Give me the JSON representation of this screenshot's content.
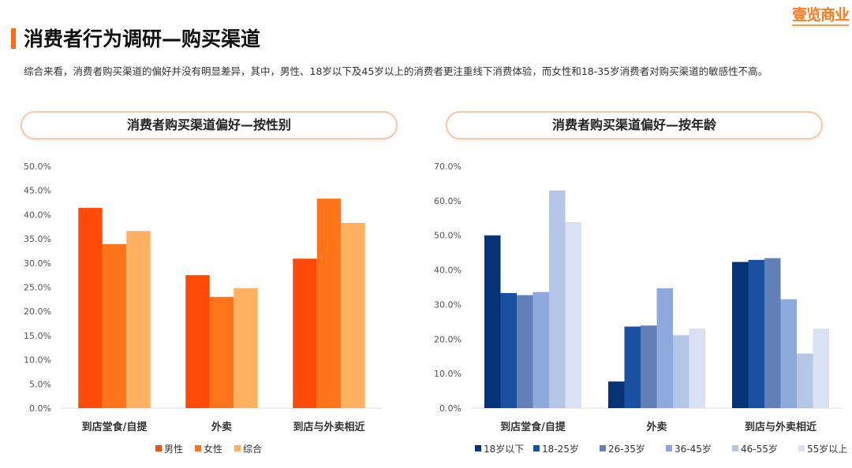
{
  "header": {
    "title": "消费者行为调研—购买渠道",
    "logo": "壹览商业",
    "summary": "综合来看，消费者购买渠道的偏好并没有明显差异，其中，男性、18岁以下及45岁以上的消费者更注重线下消费体验，而女性和18-35岁消费者对购买渠道的敏感性不高。"
  },
  "chart_data": [
    {
      "type": "bar",
      "title": "消费者购买渠道偏好—按性别",
      "categories": [
        "到店堂食/自提",
        "外卖",
        "到店与外卖相近"
      ],
      "yticks": [
        "0.0%",
        "5.0%",
        "10.0%",
        "15.0%",
        "20.0%",
        "25.0%",
        "30.0%",
        "35.0%",
        "40.0%",
        "45.0%",
        "50.0%"
      ],
      "ylim": [
        0,
        50
      ],
      "legend": "bottom",
      "series": [
        {
          "name": "男性",
          "color": "#ff4a08",
          "values": [
            41.4,
            27.5,
            30.9
          ]
        },
        {
          "name": "女性",
          "color": "#ff7418",
          "values": [
            33.9,
            23.0,
            43.3
          ]
        },
        {
          "name": "综合",
          "color": "#ffb060",
          "values": [
            36.6,
            24.8,
            38.3
          ]
        }
      ]
    },
    {
      "type": "bar",
      "title": "消费者购买渠道偏好—按年龄",
      "categories": [
        "到店堂食/自提",
        "外卖",
        "到店与外卖相近"
      ],
      "yticks": [
        "0.0%",
        "10.0%",
        "20.0%",
        "30.0%",
        "40.0%",
        "50.0%",
        "60.0%",
        "70.0%"
      ],
      "ylim": [
        0,
        70
      ],
      "legend": "bottom",
      "series": [
        {
          "name": "18岁以下",
          "color": "#063278",
          "values": [
            50.0,
            7.7,
            42.3
          ]
        },
        {
          "name": "18-25岁",
          "color": "#1a50a0",
          "values": [
            33.3,
            23.6,
            42.9
          ]
        },
        {
          "name": "26-35岁",
          "color": "#627fb8",
          "values": [
            32.7,
            23.9,
            43.4
          ]
        },
        {
          "name": "36-45岁",
          "color": "#8eaadc",
          "values": [
            33.6,
            34.7,
            31.5
          ]
        },
        {
          "name": "46-55岁",
          "color": "#b5c6e6",
          "values": [
            63.0,
            21.1,
            15.8
          ]
        },
        {
          "name": "55岁以上",
          "color": "#d9e1f2",
          "values": [
            53.8,
            23.0,
            23.0
          ]
        }
      ]
    }
  ]
}
